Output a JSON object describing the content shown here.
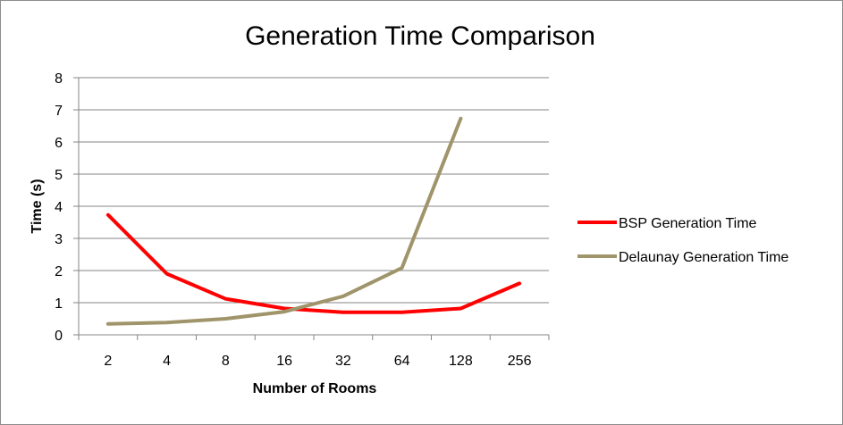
{
  "chart_data": {
    "type": "line",
    "title": "Generation Time Comparison",
    "xlabel": "Number of Rooms",
    "ylabel": "Time (s)",
    "categories": [
      "2",
      "4",
      "8",
      "16",
      "32",
      "64",
      "128",
      "256"
    ],
    "ylim": [
      0,
      8
    ],
    "yticks": [
      0,
      1,
      2,
      3,
      4,
      5,
      6,
      7,
      8
    ],
    "grid": true,
    "legend": "right",
    "series": [
      {
        "name": "BSP Generation Time",
        "color": "#ff0000",
        "values": [
          3.73,
          1.9,
          1.12,
          0.82,
          0.7,
          0.7,
          0.82,
          1.6
        ]
      },
      {
        "name": "Delaunay Generation Time",
        "color": "#a0946a",
        "values": [
          0.34,
          0.38,
          0.5,
          0.72,
          1.2,
          2.08,
          6.73,
          null
        ]
      }
    ]
  }
}
